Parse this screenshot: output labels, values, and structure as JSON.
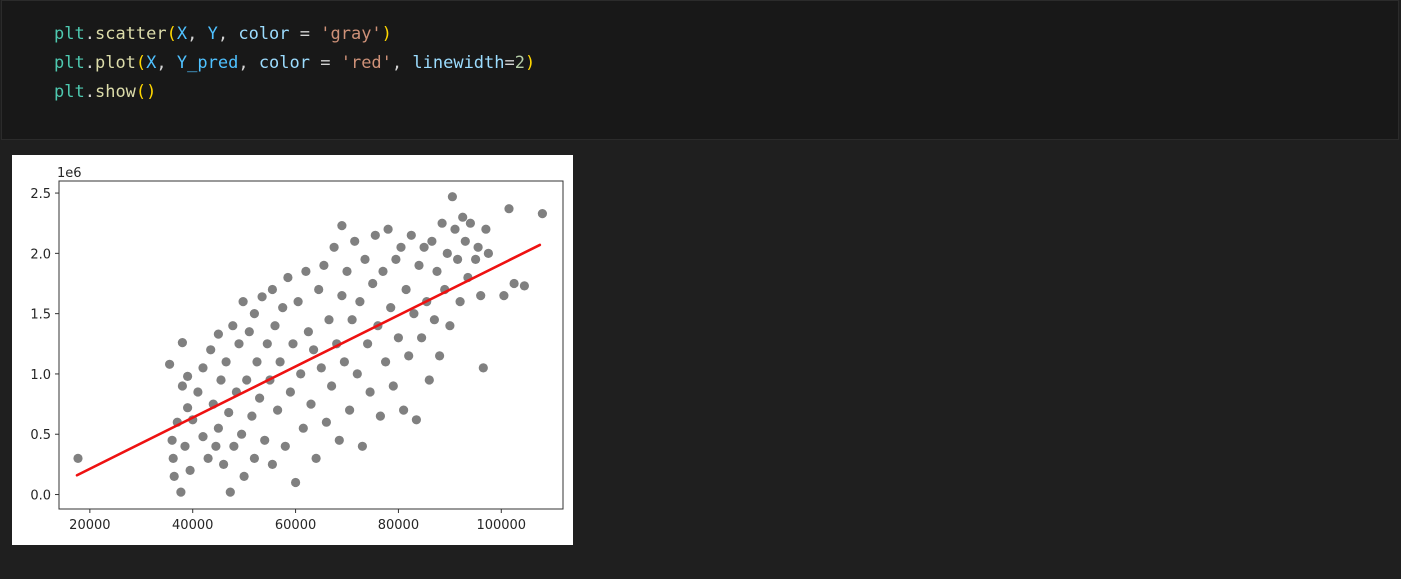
{
  "cell": {
    "code_lines": [
      [
        {
          "text": "plt",
          "cls": "mod"
        },
        {
          "text": ".",
          "cls": "op"
        },
        {
          "text": "scatter",
          "cls": "fn"
        },
        {
          "text": "(",
          "cls": "p1"
        },
        {
          "text": "X",
          "cls": "var"
        },
        {
          "text": ", ",
          "cls": "op"
        },
        {
          "text": "Y",
          "cls": "var"
        },
        {
          "text": ", ",
          "cls": "op"
        },
        {
          "text": "color",
          "cls": "kw"
        },
        {
          "text": " = ",
          "cls": "op"
        },
        {
          "text": "'gray'",
          "cls": "str"
        },
        {
          "text": ")",
          "cls": "p1"
        }
      ],
      [
        {
          "text": "plt",
          "cls": "mod"
        },
        {
          "text": ".",
          "cls": "op"
        },
        {
          "text": "plot",
          "cls": "fn"
        },
        {
          "text": "(",
          "cls": "p1"
        },
        {
          "text": "X",
          "cls": "var"
        },
        {
          "text": ", ",
          "cls": "op"
        },
        {
          "text": "Y_pred",
          "cls": "var"
        },
        {
          "text": ", ",
          "cls": "op"
        },
        {
          "text": "color",
          "cls": "kw"
        },
        {
          "text": " = ",
          "cls": "op"
        },
        {
          "text": "'red'",
          "cls": "str"
        },
        {
          "text": ", ",
          "cls": "op"
        },
        {
          "text": "linewidth",
          "cls": "kw"
        },
        {
          "text": "=",
          "cls": "op"
        },
        {
          "text": "2",
          "cls": "num"
        },
        {
          "text": ")",
          "cls": "p1"
        }
      ],
      [
        {
          "text": "plt",
          "cls": "mod"
        },
        {
          "text": ".",
          "cls": "op"
        },
        {
          "text": "show",
          "cls": "fn"
        },
        {
          "text": "()",
          "cls": "p1"
        }
      ]
    ]
  },
  "chart_data": {
    "type": "scatter",
    "xlim": [
      14000,
      112000
    ],
    "ylim": [
      -0.12,
      2.6
    ],
    "xticks": [
      20000,
      40000,
      60000,
      80000,
      100000
    ],
    "xtick_labels": [
      "20000",
      "40000",
      "60000",
      "80000",
      "100000"
    ],
    "yticks": [
      0.0,
      0.5,
      1.0,
      1.5,
      2.0,
      2.5
    ],
    "ytick_labels": [
      "0.0",
      "0.5",
      "1.0",
      "1.5",
      "2.0",
      "2.5"
    ],
    "offset_label": "1e6",
    "grid": false,
    "series": [
      {
        "type": "scatter",
        "color": "#808080",
        "points": [
          [
            17700,
            0.3
          ],
          [
            35500,
            1.08
          ],
          [
            36000,
            0.45
          ],
          [
            36200,
            0.3
          ],
          [
            36400,
            0.15
          ],
          [
            37000,
            0.6
          ],
          [
            37700,
            0.02
          ],
          [
            38000,
            1.26
          ],
          [
            38000,
            0.9
          ],
          [
            38500,
            0.4
          ],
          [
            39000,
            0.72
          ],
          [
            39500,
            0.2
          ],
          [
            39000,
            0.98
          ],
          [
            40000,
            0.62
          ],
          [
            41000,
            0.85
          ],
          [
            42000,
            0.48
          ],
          [
            42000,
            1.05
          ],
          [
            43000,
            0.3
          ],
          [
            43500,
            1.2
          ],
          [
            44000,
            0.75
          ],
          [
            44500,
            0.4
          ],
          [
            45000,
            1.33
          ],
          [
            45000,
            0.55
          ],
          [
            45500,
            0.95
          ],
          [
            46000,
            0.25
          ],
          [
            46500,
            1.1
          ],
          [
            47000,
            0.68
          ],
          [
            47300,
            0.02
          ],
          [
            47800,
            1.4
          ],
          [
            48000,
            0.4
          ],
          [
            48500,
            0.85
          ],
          [
            49000,
            1.25
          ],
          [
            49500,
            0.5
          ],
          [
            49800,
            1.6
          ],
          [
            50000,
            0.15
          ],
          [
            50500,
            0.95
          ],
          [
            51000,
            1.35
          ],
          [
            51500,
            0.65
          ],
          [
            52000,
            0.3
          ],
          [
            52000,
            1.5
          ],
          [
            52500,
            1.1
          ],
          [
            53000,
            0.8
          ],
          [
            53500,
            1.64
          ],
          [
            54000,
            0.45
          ],
          [
            54500,
            1.25
          ],
          [
            55000,
            0.95
          ],
          [
            55500,
            0.25
          ],
          [
            55500,
            1.7
          ],
          [
            56000,
            1.4
          ],
          [
            56500,
            0.7
          ],
          [
            57000,
            1.1
          ],
          [
            57500,
            1.55
          ],
          [
            58000,
            0.4
          ],
          [
            58500,
            1.8
          ],
          [
            59000,
            0.85
          ],
          [
            59500,
            1.25
          ],
          [
            60000,
            0.1
          ],
          [
            60500,
            1.6
          ],
          [
            61000,
            1.0
          ],
          [
            61500,
            0.55
          ],
          [
            62000,
            1.85
          ],
          [
            62500,
            1.35
          ],
          [
            63000,
            0.75
          ],
          [
            63500,
            1.2
          ],
          [
            64000,
            0.3
          ],
          [
            64500,
            1.7
          ],
          [
            65000,
            1.05
          ],
          [
            65500,
            1.9
          ],
          [
            66000,
            0.6
          ],
          [
            66500,
            1.45
          ],
          [
            67000,
            0.9
          ],
          [
            67500,
            2.05
          ],
          [
            68000,
            1.25
          ],
          [
            68500,
            0.45
          ],
          [
            69000,
            1.65
          ],
          [
            69000,
            2.23
          ],
          [
            69500,
            1.1
          ],
          [
            70000,
            1.85
          ],
          [
            70500,
            0.7
          ],
          [
            71000,
            1.45
          ],
          [
            71500,
            2.1
          ],
          [
            72000,
            1.0
          ],
          [
            72500,
            1.6
          ],
          [
            73000,
            0.4
          ],
          [
            73500,
            1.95
          ],
          [
            74000,
            1.25
          ],
          [
            74500,
            0.85
          ],
          [
            75000,
            1.75
          ],
          [
            75500,
            2.15
          ],
          [
            76000,
            1.4
          ],
          [
            76500,
            0.65
          ],
          [
            77000,
            1.85
          ],
          [
            77500,
            1.1
          ],
          [
            78000,
            2.2
          ],
          [
            78500,
            1.55
          ],
          [
            79000,
            0.9
          ],
          [
            79500,
            1.95
          ],
          [
            80000,
            1.3
          ],
          [
            80500,
            2.05
          ],
          [
            81000,
            0.7
          ],
          [
            81500,
            1.7
          ],
          [
            82000,
            1.15
          ],
          [
            82500,
            2.15
          ],
          [
            83000,
            1.5
          ],
          [
            83500,
            0.62
          ],
          [
            84000,
            1.9
          ],
          [
            84500,
            1.3
          ],
          [
            85000,
            2.05
          ],
          [
            85500,
            1.6
          ],
          [
            86000,
            0.95
          ],
          [
            86500,
            2.1
          ],
          [
            87000,
            1.45
          ],
          [
            87500,
            1.85
          ],
          [
            88000,
            1.15
          ],
          [
            88500,
            2.25
          ],
          [
            89000,
            1.7
          ],
          [
            89500,
            2.0
          ],
          [
            90000,
            1.4
          ],
          [
            90500,
            2.47
          ],
          [
            91000,
            2.2
          ],
          [
            91500,
            1.95
          ],
          [
            92000,
            1.6
          ],
          [
            92500,
            2.3
          ],
          [
            93000,
            2.1
          ],
          [
            93500,
            1.8
          ],
          [
            94000,
            2.25
          ],
          [
            95000,
            1.95
          ],
          [
            95500,
            2.05
          ],
          [
            96000,
            1.65
          ],
          [
            96500,
            1.05
          ],
          [
            97000,
            2.2
          ],
          [
            97500,
            2.0
          ],
          [
            100500,
            1.65
          ],
          [
            101500,
            2.37
          ],
          [
            102500,
            1.75
          ],
          [
            104500,
            1.73
          ],
          [
            108000,
            2.33
          ]
        ]
      },
      {
        "type": "line",
        "color": "#ee1111",
        "x": [
          17500,
          107500
        ],
        "y": [
          0.16,
          2.07
        ]
      }
    ]
  }
}
